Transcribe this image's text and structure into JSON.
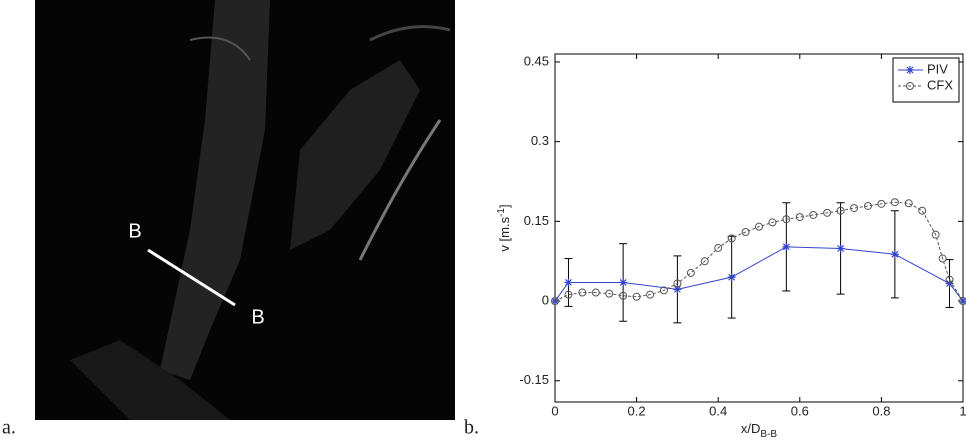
{
  "figure": {
    "panel_labels": [
      "a.",
      "b."
    ],
    "section_labels": [
      "B",
      "B"
    ]
  },
  "chart_data": {
    "type": "line",
    "xlabel": "x/D",
    "xlabel_sub": "B-B",
    "ylabel": "v [m.s",
    "ylabel_sup": "-1",
    "ylabel_end": "]",
    "xlim": [
      0,
      1
    ],
    "ylim": [
      -0.19,
      0.465
    ],
    "xticks": [
      0,
      0.2,
      0.4,
      0.6,
      0.8,
      1
    ],
    "yticks": [
      -0.15,
      0,
      0.15,
      0.3,
      0.45
    ],
    "legend": "northeast",
    "grid": false,
    "series": [
      {
        "name": "PIV",
        "color": "#3344cc",
        "marker": "star",
        "dash": false,
        "x": [
          0,
          0.033,
          0.167,
          0.3,
          0.433,
          0.567,
          0.7,
          0.833,
          0.967,
          1
        ],
        "values": [
          0,
          0.035,
          0.035,
          0.022,
          0.045,
          0.102,
          0.099,
          0.088,
          0.033,
          0
        ],
        "errors": [
          0,
          0.045,
          0.073,
          0.063,
          0.077,
          0.083,
          0.086,
          0.082,
          0.045,
          0
        ]
      },
      {
        "name": "CFX",
        "color": "#555555",
        "marker": "circle",
        "dash": true,
        "x": [
          0,
          0.033,
          0.067,
          0.1,
          0.133,
          0.167,
          0.2,
          0.233,
          0.267,
          0.3,
          0.333,
          0.367,
          0.4,
          0.433,
          0.467,
          0.5,
          0.533,
          0.567,
          0.6,
          0.633,
          0.667,
          0.7,
          0.733,
          0.767,
          0.8,
          0.833,
          0.867,
          0.9,
          0.933,
          0.95,
          0.967,
          1
        ],
        "values": [
          0,
          0.012,
          0.016,
          0.016,
          0.014,
          0.01,
          0.008,
          0.012,
          0.02,
          0.033,
          0.053,
          0.075,
          0.1,
          0.118,
          0.13,
          0.14,
          0.148,
          0.154,
          0.158,
          0.162,
          0.166,
          0.17,
          0.175,
          0.179,
          0.183,
          0.186,
          0.184,
          0.17,
          0.125,
          0.08,
          0.04,
          0
        ]
      }
    ]
  }
}
